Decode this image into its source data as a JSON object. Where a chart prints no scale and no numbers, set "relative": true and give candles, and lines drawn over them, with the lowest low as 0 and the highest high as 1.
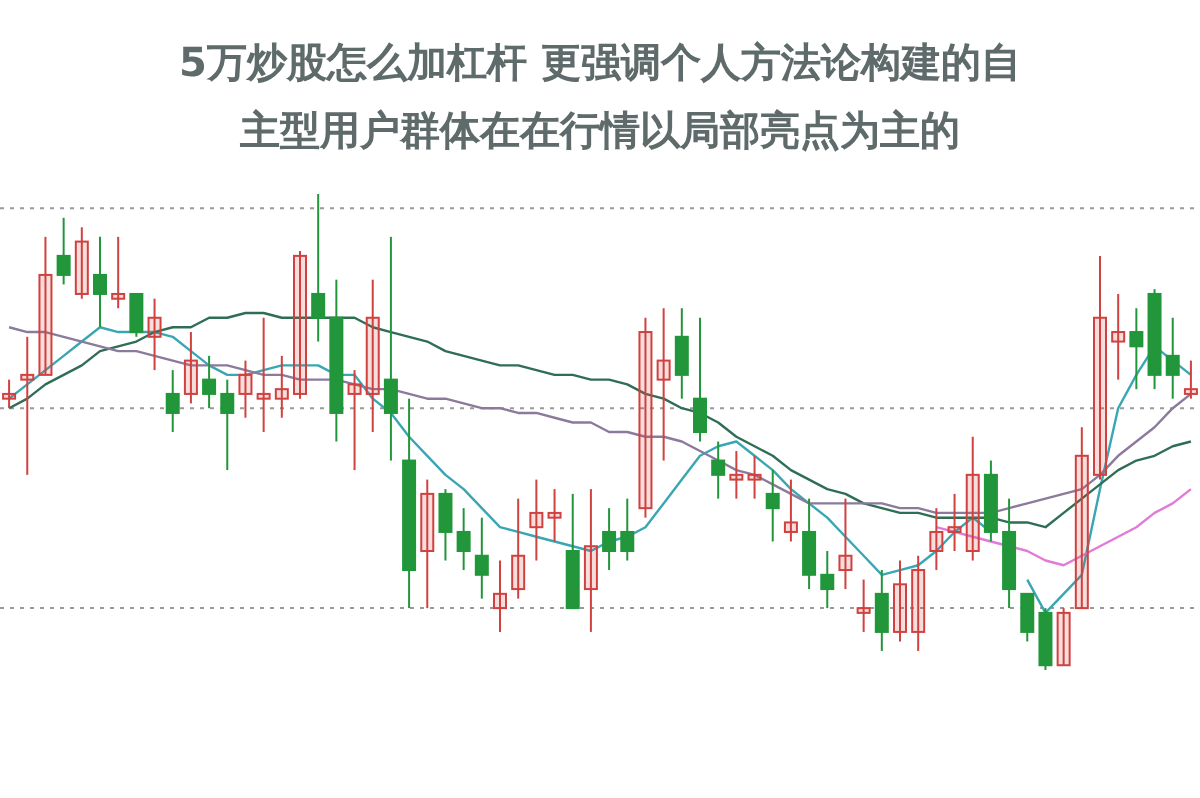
{
  "chart_data": {
    "type": "candlestick",
    "title": "5万炒股怎么加杠杆 更强调个人方法论构建的自主型用户群体在在行情以局部亮点为主的",
    "relative": true,
    "categories": [
      null,
      null,
      null,
      null,
      null,
      null,
      null,
      null,
      null,
      null,
      null,
      null,
      null,
      null,
      null,
      null,
      null,
      null,
      null,
      null,
      null,
      null,
      null,
      null,
      null,
      null,
      null,
      null,
      null,
      null,
      null,
      null,
      null,
      null,
      null,
      null,
      null,
      null,
      null,
      null,
      null,
      null,
      null,
      null,
      null,
      null,
      null,
      null,
      null,
      null,
      null,
      null,
      null,
      null,
      null,
      null,
      null,
      null,
      null,
      null,
      null,
      null,
      null,
      null,
      null,
      null
    ],
    "ohlc": [
      [
        0.57,
        0.61,
        0.55,
        0.58
      ],
      [
        0.61,
        0.7,
        0.41,
        0.62
      ],
      [
        0.62,
        0.91,
        0.62,
        0.83
      ],
      [
        0.87,
        0.95,
        0.81,
        0.83
      ],
      [
        0.79,
        0.93,
        0.78,
        0.9
      ],
      [
        0.83,
        0.91,
        0.72,
        0.79
      ],
      [
        0.78,
        0.91,
        0.76,
        0.79
      ],
      [
        0.79,
        0.79,
        0.7,
        0.71
      ],
      [
        0.7,
        0.78,
        0.63,
        0.74
      ],
      [
        0.58,
        0.63,
        0.5,
        0.54
      ],
      [
        0.58,
        0.71,
        0.56,
        0.65
      ],
      [
        0.61,
        0.66,
        0.55,
        0.58
      ],
      [
        0.58,
        0.61,
        0.42,
        0.54
      ],
      [
        0.58,
        0.65,
        0.53,
        0.62
      ],
      [
        0.57,
        0.74,
        0.5,
        0.58
      ],
      [
        0.57,
        0.66,
        0.53,
        0.59
      ],
      [
        0.58,
        0.88,
        0.57,
        0.87
      ],
      [
        0.79,
        1.0,
        0.69,
        0.74
      ],
      [
        0.74,
        0.82,
        0.48,
        0.54
      ],
      [
        0.58,
        0.63,
        0.42,
        0.6
      ],
      [
        0.58,
        0.82,
        0.5,
        0.74
      ],
      [
        0.61,
        0.91,
        0.44,
        0.54
      ],
      [
        0.44,
        0.57,
        0.13,
        0.21
      ],
      [
        0.25,
        0.4,
        0.13,
        0.37
      ],
      [
        0.37,
        0.38,
        0.23,
        0.29
      ],
      [
        0.29,
        0.34,
        0.21,
        0.25
      ],
      [
        0.24,
        0.32,
        0.15,
        0.2
      ],
      [
        0.13,
        0.23,
        0.08,
        0.16
      ],
      [
        0.17,
        0.36,
        0.15,
        0.24
      ],
      [
        0.3,
        0.4,
        0.23,
        0.33
      ],
      [
        0.32,
        0.38,
        0.27,
        0.33
      ],
      [
        0.25,
        0.37,
        0.13,
        0.13
      ],
      [
        0.17,
        0.38,
        0.08,
        0.26
      ],
      [
        0.29,
        0.34,
        0.21,
        0.25
      ],
      [
        0.29,
        0.36,
        0.23,
        0.25
      ],
      [
        0.34,
        0.74,
        0.32,
        0.71
      ],
      [
        0.61,
        0.76,
        0.44,
        0.65
      ],
      [
        0.7,
        0.76,
        0.57,
        0.62
      ],
      [
        0.57,
        0.74,
        0.48,
        0.5
      ],
      [
        0.44,
        0.48,
        0.36,
        0.41
      ],
      [
        0.4,
        0.46,
        0.36,
        0.41
      ],
      [
        0.4,
        0.45,
        0.36,
        0.41
      ],
      [
        0.37,
        0.42,
        0.27,
        0.34
      ],
      [
        0.29,
        0.4,
        0.27,
        0.31
      ],
      [
        0.29,
        0.36,
        0.17,
        0.2
      ],
      [
        0.2,
        0.25,
        0.13,
        0.17
      ],
      [
        0.21,
        0.36,
        0.17,
        0.24
      ],
      [
        0.12,
        0.19,
        0.08,
        0.13
      ],
      [
        0.16,
        0.21,
        0.04,
        0.08
      ],
      [
        0.08,
        0.23,
        0.06,
        0.18
      ],
      [
        0.08,
        0.24,
        0.04,
        0.21
      ],
      [
        0.25,
        0.34,
        0.21,
        0.29
      ],
      [
        0.29,
        0.37,
        0.25,
        0.3
      ],
      [
        0.25,
        0.49,
        0.23,
        0.41
      ],
      [
        0.41,
        0.44,
        0.27,
        0.29
      ],
      [
        0.29,
        0.36,
        0.13,
        0.17
      ],
      [
        0.16,
        0.16,
        0.06,
        0.08
      ],
      [
        0.12,
        0.13,
        0.0,
        0.01
      ],
      [
        0.01,
        0.13,
        0.01,
        0.12
      ],
      [
        0.13,
        0.51,
        0.13,
        0.45
      ],
      [
        0.41,
        0.87,
        0.4,
        0.74
      ],
      [
        0.69,
        0.79,
        0.61,
        0.71
      ],
      [
        0.71,
        0.76,
        0.59,
        0.68
      ],
      [
        0.79,
        0.8,
        0.59,
        0.62
      ],
      [
        0.66,
        0.74,
        0.57,
        0.62
      ],
      [
        0.58,
        0.65,
        0.57,
        0.59
      ]
    ],
    "colors": [
      "#d0413f",
      "#d0413f",
      "#d0413f",
      "#22963a",
      "#d0413f",
      "#22963a",
      "#d0413f",
      "#22963a",
      "#d0413f",
      "#22963a",
      "#d0413f",
      "#22963a",
      "#22963a",
      "#d0413f",
      "#d0413f",
      "#d0413f",
      "#d0413f",
      "#22963a",
      "#22963a",
      "#d0413f",
      "#d0413f",
      "#22963a",
      "#22963a",
      "#d0413f",
      "#22963a",
      "#22963a",
      "#22963a",
      "#d0413f",
      "#d0413f",
      "#d0413f",
      "#d0413f",
      "#22963a",
      "#d0413f",
      "#22963a",
      "#22963a",
      "#d0413f",
      "#d0413f",
      "#22963a",
      "#22963a",
      "#22963a",
      "#d0413f",
      "#d0413f",
      "#22963a",
      "#d0413f",
      "#22963a",
      "#22963a",
      "#d0413f",
      "#d0413f",
      "#22963a",
      "#d0413f",
      "#d0413f",
      "#d0413f",
      "#d0413f",
      "#d0413f",
      "#22963a",
      "#22963a",
      "#22963a",
      "#22963a",
      "#d0413f",
      "#d0413f",
      "#d0413f",
      "#d0413f",
      "#22963a",
      "#22963a",
      "#22963a",
      "#d0413f"
    ],
    "series": [
      {
        "type": "line",
        "color": "#3aa6b4",
        "values": [
          0.57,
          0.6,
          0.63,
          0.66,
          0.69,
          0.72,
          0.71,
          0.71,
          0.71,
          0.7,
          0.67,
          0.64,
          0.62,
          0.62,
          0.63,
          0.64,
          0.64,
          0.64,
          0.62,
          0.62,
          0.57,
          0.54,
          0.49,
          0.45,
          0.41,
          0.38,
          0.34,
          0.3,
          0.29,
          0.28,
          0.27,
          0.26,
          0.25,
          0.27,
          0.28,
          0.3,
          0.35,
          0.4,
          0.45,
          0.47,
          0.48,
          0.45,
          0.42,
          0.38,
          0.35,
          0.32,
          0.28,
          0.24,
          0.2,
          0.21,
          0.22,
          0.25,
          0.29,
          0.32,
          0.29,
          null,
          0.19,
          0.12,
          0.16,
          0.2,
          0.38,
          0.55,
          0.62,
          0.68,
          0.65,
          0.62
        ]
      },
      {
        "type": "line",
        "color": "#2f6e55",
        "values": [
          0.55,
          0.57,
          0.6,
          0.62,
          0.64,
          0.67,
          0.68,
          0.69,
          0.71,
          0.72,
          0.72,
          0.74,
          0.74,
          0.75,
          0.75,
          0.74,
          0.74,
          0.74,
          0.74,
          0.74,
          0.72,
          0.71,
          0.7,
          0.69,
          0.67,
          0.66,
          0.65,
          0.64,
          0.64,
          0.63,
          0.62,
          0.62,
          0.61,
          0.61,
          0.6,
          0.58,
          0.57,
          0.55,
          0.54,
          0.52,
          0.49,
          0.47,
          0.45,
          0.42,
          0.4,
          0.38,
          0.37,
          0.35,
          0.34,
          0.33,
          0.33,
          0.32,
          0.32,
          0.32,
          0.32,
          0.31,
          0.31,
          0.3,
          0.33,
          0.36,
          0.39,
          0.42,
          0.44,
          0.45,
          0.47,
          0.48
        ]
      },
      {
        "type": "line",
        "color": "#8c7a9c",
        "values": [
          0.72,
          0.71,
          0.71,
          0.7,
          0.69,
          0.68,
          0.67,
          0.67,
          0.66,
          0.65,
          0.64,
          0.64,
          0.64,
          0.63,
          0.62,
          0.62,
          0.61,
          0.61,
          0.61,
          0.6,
          0.59,
          0.59,
          0.58,
          0.57,
          0.57,
          0.56,
          0.55,
          0.55,
          0.54,
          0.54,
          0.53,
          0.52,
          0.52,
          0.5,
          0.5,
          0.49,
          0.49,
          0.48,
          0.46,
          0.44,
          0.42,
          0.41,
          0.39,
          0.37,
          0.35,
          0.35,
          0.35,
          0.35,
          0.35,
          0.34,
          0.34,
          0.33,
          0.33,
          0.33,
          0.33,
          0.34,
          0.35,
          0.36,
          0.37,
          0.38,
          0.41,
          0.45,
          0.48,
          0.51,
          0.55,
          0.58
        ]
      },
      {
        "type": "line",
        "color": "#e27ad8",
        "values": [
          null,
          null,
          null,
          null,
          null,
          null,
          null,
          null,
          null,
          null,
          null,
          null,
          null,
          null,
          null,
          null,
          null,
          null,
          null,
          null,
          null,
          null,
          null,
          null,
          null,
          null,
          null,
          null,
          null,
          null,
          null,
          null,
          null,
          null,
          null,
          null,
          null,
          null,
          null,
          null,
          null,
          null,
          null,
          null,
          null,
          null,
          null,
          null,
          null,
          null,
          null,
          0.3,
          0.29,
          0.28,
          0.27,
          0.26,
          0.25,
          0.23,
          0.22,
          0.24,
          0.26,
          0.28,
          0.3,
          0.33,
          0.35,
          0.38
        ]
      }
    ],
    "ref_lines": [
      {
        "axis": "y",
        "value": 0.97,
        "color": "#999999",
        "line_style": "dotted"
      },
      {
        "axis": "y",
        "value": 0.55,
        "color": "#999999",
        "line_style": "dotted"
      },
      {
        "axis": "y",
        "value": 0.13,
        "color": "#999999",
        "line_style": "dotted"
      }
    ]
  }
}
